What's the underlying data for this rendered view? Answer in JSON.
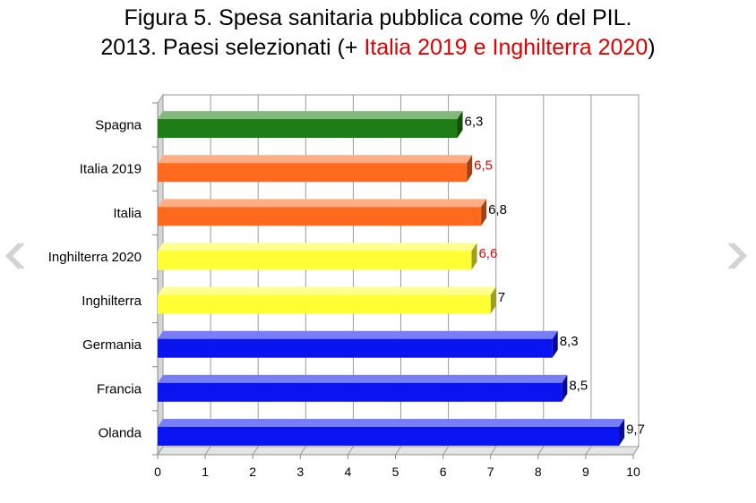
{
  "title": {
    "line1": "Figura 5. Spesa sanitaria pubblica come % del PIL.",
    "line2_prefix": "2013.  Paesi selezionati (+ ",
    "line2_highlight": "Italia 2019 e Inghilterra 2020",
    "line2_suffix": ")"
  },
  "colors": {
    "green": "#1e7d14",
    "orange": "#ff6a1f",
    "yellow": "#ffff33",
    "blue": "#0a14f0",
    "highlight_text": "#e00000"
  },
  "navigation": {
    "prev_icon": "chevron-left-icon",
    "next_icon": "chevron-right-icon"
  },
  "chart_data": {
    "type": "bar",
    "orientation": "horizontal",
    "categories": [
      "Spagna",
      "Italia 2019",
      "Italia",
      "Inghilterra 2020",
      "Inghilterra",
      "Germania",
      "Francia",
      "Olanda"
    ],
    "values": [
      6.3,
      6.5,
      6.8,
      6.6,
      7,
      8.3,
      8.5,
      9.7
    ],
    "value_labels": [
      "6,3",
      "6,5",
      "6,8",
      "6,6",
      "7",
      "8,3",
      "8,5",
      "9,7"
    ],
    "bar_colors": [
      "green",
      "orange",
      "orange",
      "yellow",
      "yellow",
      "blue",
      "blue",
      "blue"
    ],
    "label_highlighted": [
      false,
      true,
      false,
      true,
      false,
      false,
      false,
      false
    ],
    "xlim": [
      0,
      10
    ],
    "xticks": [
      "0",
      "1",
      "2",
      "3",
      "4",
      "5",
      "6",
      "7",
      "8",
      "9",
      "10"
    ],
    "grid": true,
    "legend": "none"
  }
}
